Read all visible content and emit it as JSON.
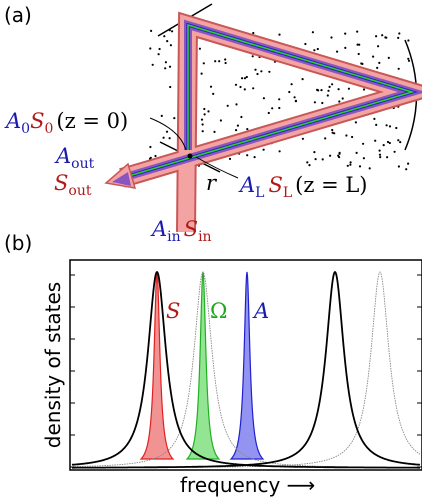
{
  "panel_a": {
    "label": "(a)",
    "start_label": {
      "a": "A",
      "a_sub": "0",
      "s": "S",
      "s_sub": "0",
      "condition": "(z = 0)"
    },
    "output_label": {
      "a": "A",
      "a_sub": "out",
      "s": "S",
      "s_sub": "out"
    },
    "mirror_label": "r",
    "end_label": {
      "a": "A",
      "a_sub": "L",
      "s": "S",
      "s_sub": "L",
      "condition": "(z = L)"
    },
    "input_label": {
      "a": "A",
      "a_sub": "in",
      "s": "S",
      "s_sub": "in"
    }
  },
  "panel_b": {
    "label": "(b)",
    "y_label": "density of states",
    "x_label": "frequency ⟶",
    "peak_labels": {
      "s": "S",
      "omega": "Ω",
      "a": "A"
    }
  }
}
